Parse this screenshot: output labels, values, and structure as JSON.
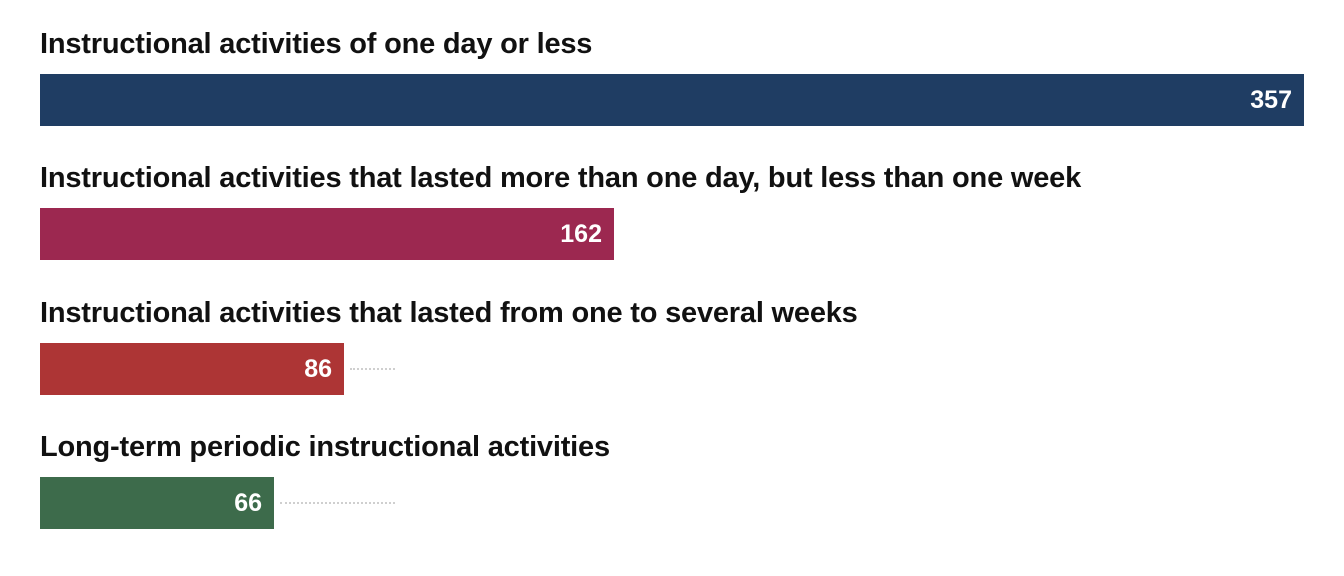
{
  "chart_data": {
    "type": "bar",
    "orientation": "horizontal",
    "categories": [
      "Instructional activities of one day or less",
      "Instructional activities that lasted more than one day, but less than one week",
      "Instructional activities that lasted from one to several weeks",
      "Long-term periodic instructional activities"
    ],
    "values": [
      357,
      162,
      86,
      66
    ],
    "colors": [
      "#1f3d63",
      "#9c2850",
      "#ad3535",
      "#3d6b4b"
    ],
    "xlim": [
      0,
      357
    ],
    "grid": false,
    "legend": "none"
  }
}
